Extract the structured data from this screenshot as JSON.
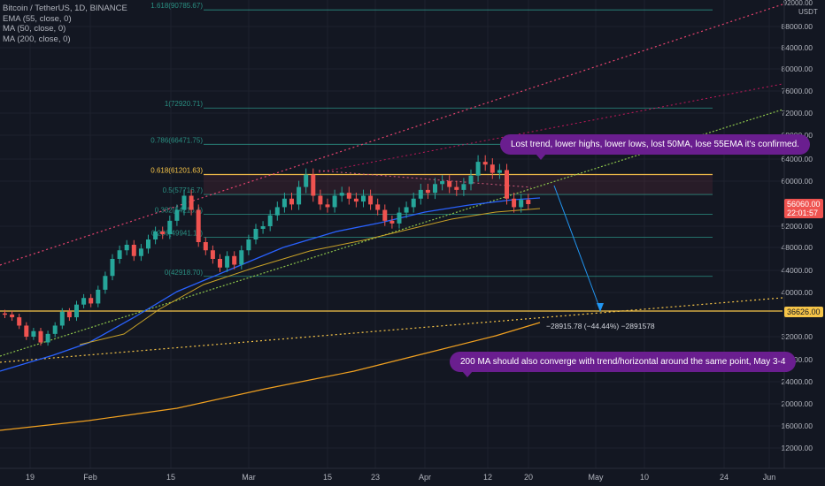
{
  "legend": {
    "title": "Bitcoin / TetherUS, 1D, BINANCE",
    "ema": "EMA (55, close, 0)",
    "ma50": "MA (50, close, 0)",
    "ma200": "MA (200, close, 0)"
  },
  "y_axis": {
    "currency": "USDT",
    "top_label": "92000.00",
    "ticks": [
      "88000.00",
      "84000.00",
      "80000.00",
      "76000.00",
      "72000.00",
      "68000.00",
      "64000.00",
      "60000.00",
      "52000.00",
      "48000.00",
      "44000.00",
      "40000.00",
      "32000.00",
      "28000.00",
      "24000.00",
      "20000.00",
      "16000.00",
      "12000.00"
    ],
    "current_price": "56060.00",
    "countdown": "22:01:57",
    "target_price": "36626.00"
  },
  "x_axis": {
    "ticks": [
      "19",
      "Feb",
      "15",
      "Mar",
      "15",
      "23",
      "Apr",
      "12",
      "20",
      "May",
      "10",
      "24",
      "Jun"
    ]
  },
  "fib_levels": [
    {
      "label": "1.618(90785.67)",
      "price": 90785.67
    },
    {
      "label": "1(72920.71)",
      "price": 72920.71
    },
    {
      "label": "0.786(66471.75)",
      "price": 66471.75
    },
    {
      "label": "0.618(61201.63)",
      "price": 61201.63
    },
    {
      "label": "0.5(57716.7)",
      "price": 57716.7
    },
    {
      "label": "0.382(54216.4)",
      "price": 54216.4
    },
    {
      "label": "0.236(49941.11)",
      "price": 49941.11
    },
    {
      "label": "0(42918.70)",
      "price": 42918.7
    }
  ],
  "annotations": {
    "bubble_top": "Lost trend, lower highs, lower lows, lost 50MA, lose 55EMA it's confirmed.",
    "bubble_bottom": "200 MA should also converge with trend/horizontal around the same point, May 3-4",
    "measure": "−28915.78 (−44.44%) −2891578"
  },
  "colors": {
    "background": "#131722",
    "up": "#26a69a",
    "down": "#ef5350",
    "fib_line": "#2a8f82",
    "fib_key": "#f7c548",
    "ema": "#2962ff",
    "ma50": "#c9a227",
    "ma200": "#f0a020",
    "bubble": "#6a1e8f",
    "current_badge": "#ef5350",
    "target_badge": "#f7c548"
  }
}
